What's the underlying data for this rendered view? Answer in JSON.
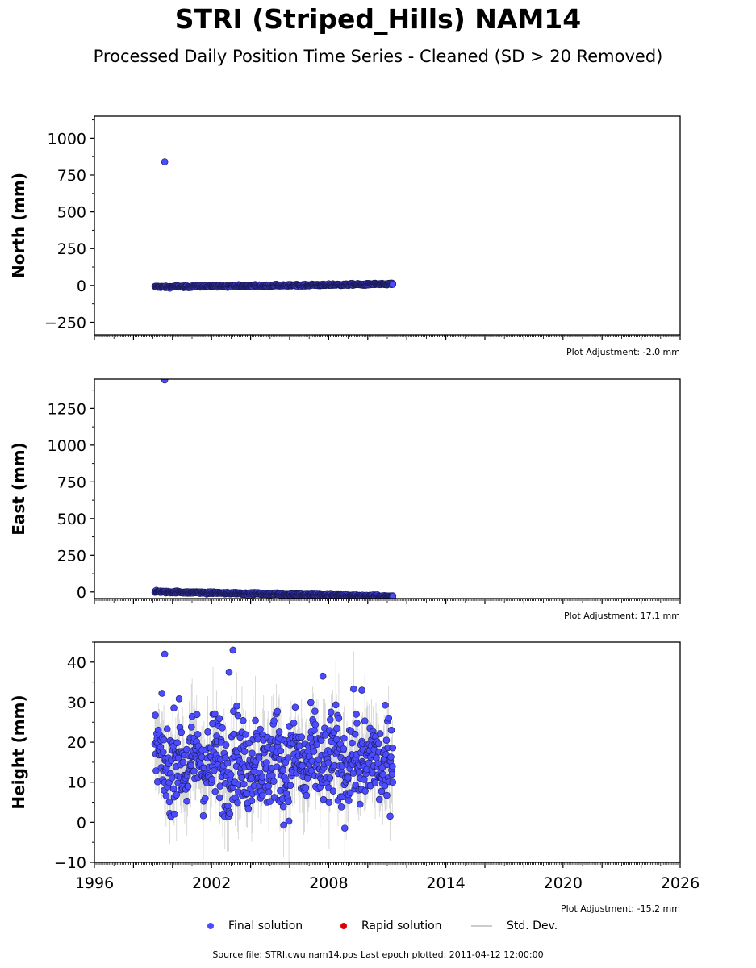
{
  "title": "STRI (Striped_Hills) NAM14",
  "subtitle": "Processed Daily Position Time Series - Cleaned (SD > 20 Removed)",
  "legend": [
    {
      "label": "Final solution",
      "color": "#4b4bff",
      "kind": "dot"
    },
    {
      "label": "Rapid solution",
      "color": "#dd0000",
      "kind": "dot"
    },
    {
      "label": "Std. Dev.",
      "color": "#cccccc",
      "kind": "line"
    }
  ],
  "footer": "Source file: STRI.cwu.nam14.pos  Last epoch plotted: 2011-04-12 12:00:00",
  "colors": {
    "final": "#4b4bff",
    "rapid": "#dd0000",
    "stddev": "#999999"
  },
  "chart_data": [
    {
      "type": "scatter",
      "ylabel": "North (mm)",
      "adjustment": "Plot Adjustment: -2.0 mm",
      "xlim": [
        1996,
        2026
      ],
      "ylim": [
        -335,
        1150
      ],
      "yticks": [
        -250,
        0,
        250,
        500,
        750,
        1000
      ],
      "ytick_labels": [
        "−250",
        "0",
        "250",
        "500",
        "750",
        "1000"
      ],
      "xticks": [],
      "date_range": [
        1999.1,
        2011.28
      ],
      "trend": {
        "start": -10,
        "end": 10
      },
      "noise": 4,
      "outliers": [
        {
          "x": 1999.6,
          "y": 840
        }
      ],
      "end_point": {
        "x": 2011.28,
        "y": 8
      }
    },
    {
      "type": "scatter",
      "ylabel": "East (mm)",
      "adjustment": "Plot Adjustment: 17.1 mm",
      "xlim": [
        1996,
        2026
      ],
      "ylim": [
        -45,
        1450
      ],
      "yticks": [
        0,
        250,
        500,
        750,
        1000,
        1250
      ],
      "ytick_labels": [
        "0",
        "250",
        "500",
        "750",
        "1000",
        "1250"
      ],
      "xticks": [],
      "date_range": [
        1999.1,
        2011.28
      ],
      "trend": {
        "start": 2,
        "end": -30
      },
      "noise": 4,
      "outliers": [
        {
          "x": 1999.6,
          "y": 1445
        }
      ],
      "end_point": {
        "x": 2011.28,
        "y": -32
      }
    },
    {
      "type": "scatter",
      "ylabel": "Height (mm)",
      "adjustment": "Plot Adjustment: -15.2 mm",
      "xlim": [
        1996,
        2026
      ],
      "ylim": [
        -10,
        45
      ],
      "yticks": [
        -10,
        0,
        10,
        20,
        30,
        40
      ],
      "ytick_labels": [
        "−10",
        "0",
        "10",
        "20",
        "30",
        "40"
      ],
      "xticks": [
        1996,
        2002,
        2008,
        2014,
        2020,
        2026
      ],
      "xtick_labels": [
        "1996",
        "2002",
        "2008",
        "2014",
        "2020",
        "2026"
      ],
      "date_range": [
        1999.1,
        2011.28
      ],
      "trend": {
        "start": 15,
        "end": 15
      },
      "noise": 7,
      "outliers": [
        {
          "x": 1999.6,
          "y": 42
        },
        {
          "x": 2003.1,
          "y": 43
        },
        {
          "x": 2002.9,
          "y": 37.5
        },
        {
          "x": 2007.7,
          "y": 36.5
        },
        {
          "x": 2009.7,
          "y": 33
        }
      ],
      "end_point": {
        "x": 2011.28,
        "y": 10
      }
    }
  ]
}
